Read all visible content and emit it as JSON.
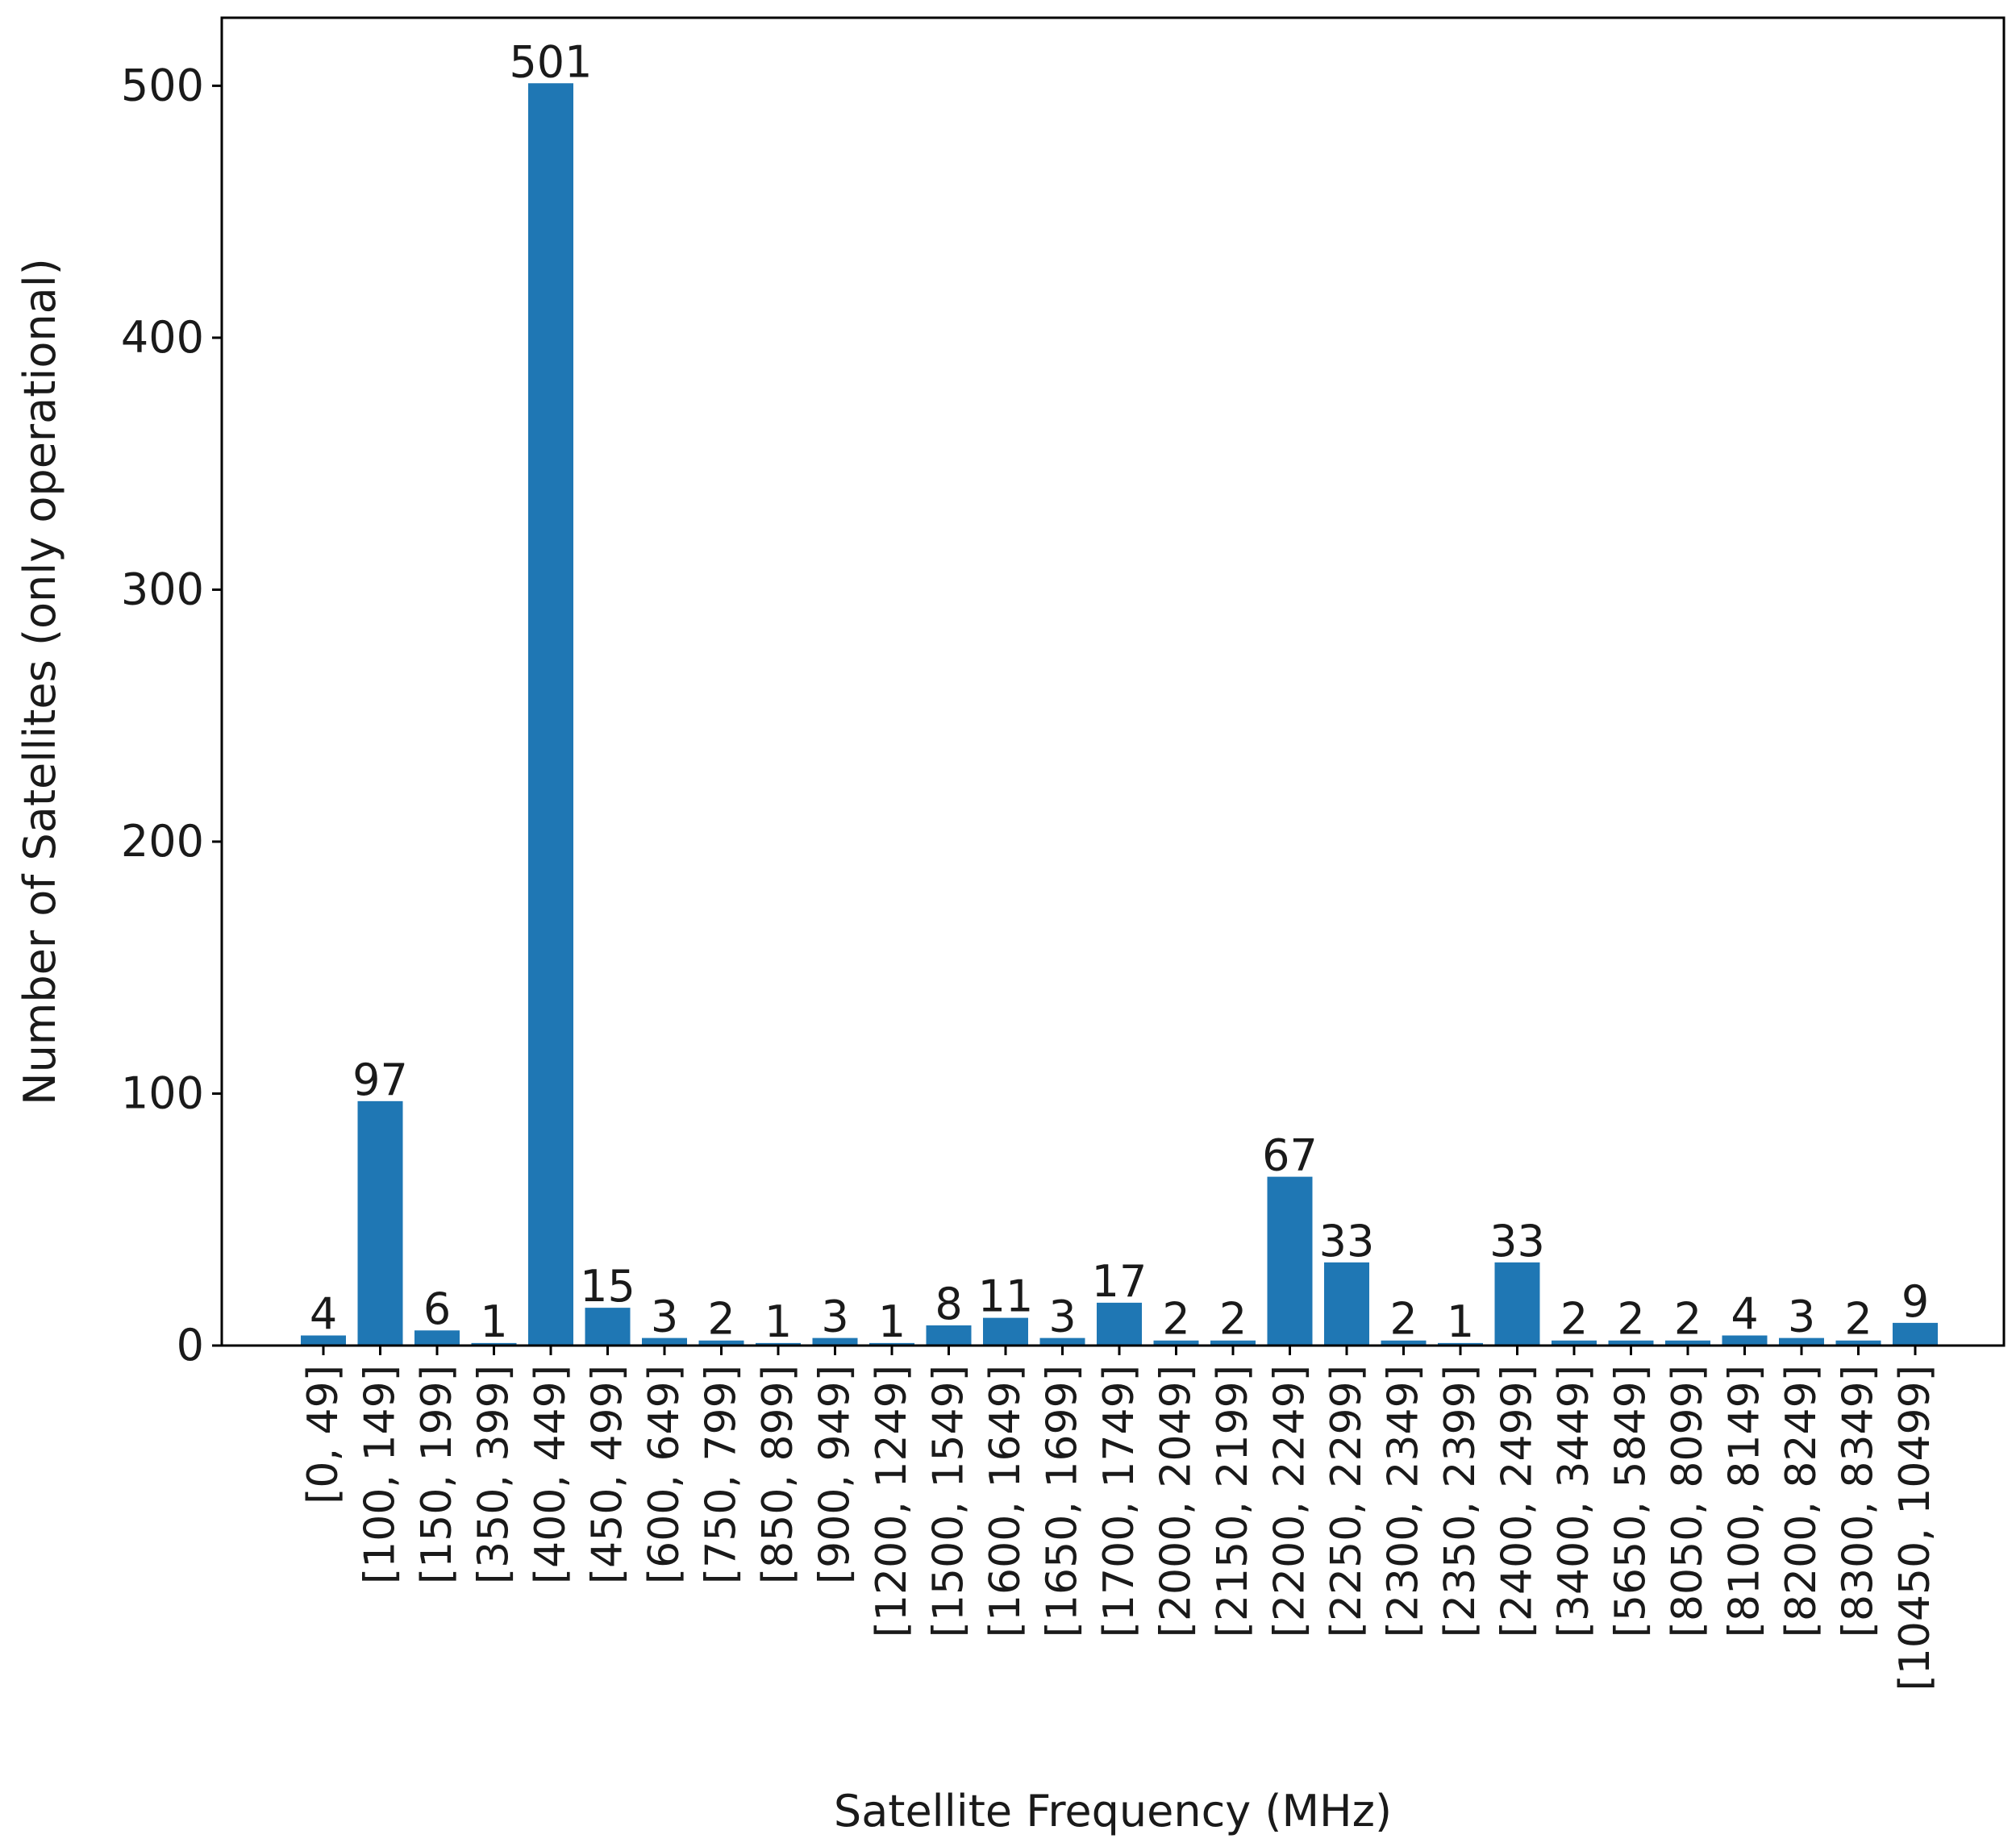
{
  "chart_data": {
    "type": "bar",
    "title": "",
    "xlabel": "Satellite Frequency (MHz)",
    "ylabel": "Number of Satellites (only operational)",
    "ylim": [
      0,
      527
    ],
    "yticks": [
      0,
      100,
      200,
      300,
      400,
      500
    ],
    "grid": false,
    "legend": "none",
    "bar_color": "#1f77b4",
    "categories": [
      "[0, 49]",
      "[100, 149]",
      "[150, 199]",
      "[350, 399]",
      "[400, 449]",
      "[450, 499]",
      "[600, 649]",
      "[750, 799]",
      "[850, 899]",
      "[900, 949]",
      "[1200, 1249]",
      "[1500, 1549]",
      "[1600, 1649]",
      "[1650, 1699]",
      "[1700, 1749]",
      "[2000, 2049]",
      "[2150, 2199]",
      "[2200, 2249]",
      "[2250, 2299]",
      "[2300, 2349]",
      "[2350, 2399]",
      "[2400, 2499]",
      "[3400, 3449]",
      "[5650, 5849]",
      "[8050, 8099]",
      "[8100, 8149]",
      "[8200, 8249]",
      "[8300, 8349]",
      "[10450, 10499]"
    ],
    "values": [
      4,
      97,
      6,
      1,
      501,
      15,
      3,
      2,
      1,
      3,
      1,
      8,
      11,
      3,
      17,
      2,
      2,
      67,
      33,
      2,
      1,
      33,
      2,
      2,
      2,
      4,
      3,
      2,
      9
    ]
  }
}
